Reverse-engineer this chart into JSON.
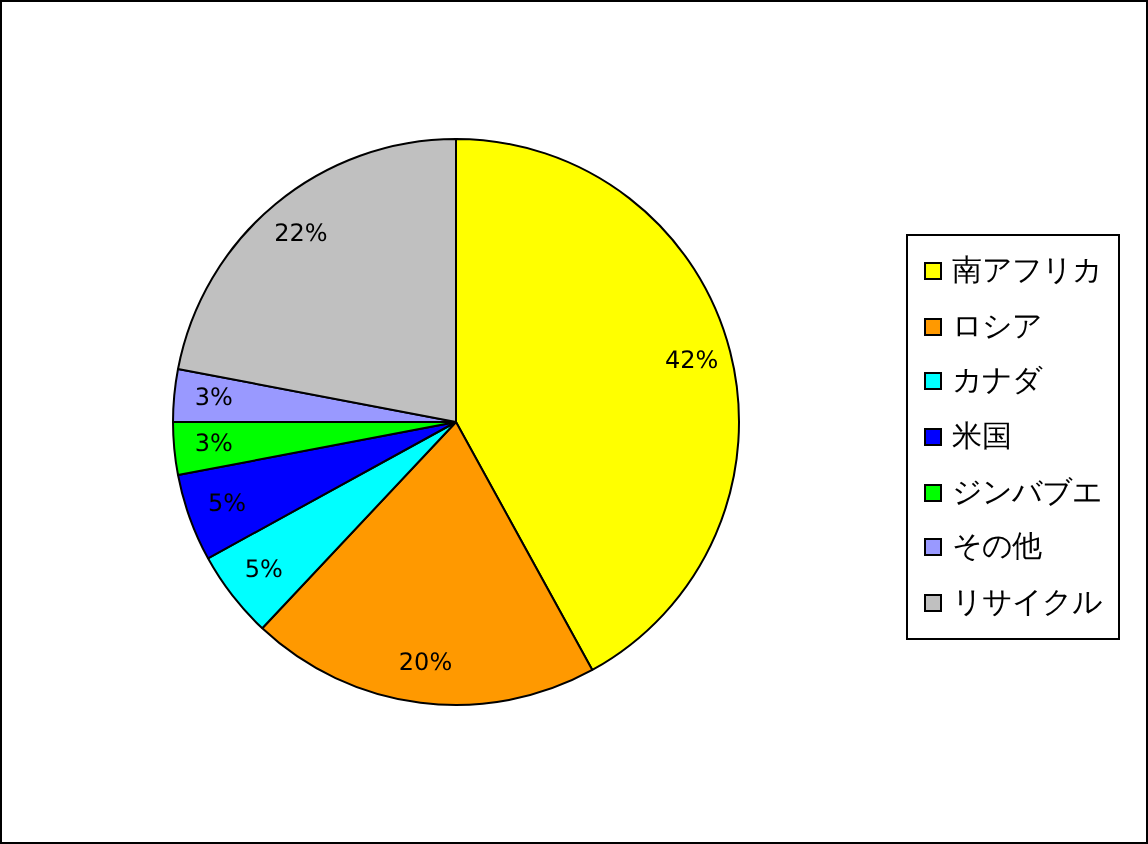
{
  "chart_data": {
    "type": "pie",
    "categories": [
      "南アフリカ",
      "ロシア",
      "カナダ",
      "米国",
      "ジンバブエ",
      "その他",
      "リサイクル"
    ],
    "values": [
      42,
      20,
      5,
      5,
      3,
      3,
      22
    ],
    "colors": [
      "#ffff00",
      "#ff9900",
      "#00ffff",
      "#0000ff",
      "#00ff00",
      "#9999ff",
      "#c0c0c0"
    ],
    "value_labels": [
      "42%",
      "20%",
      "5%",
      "5%",
      "3%",
      "3%",
      "22%"
    ],
    "legend": "right"
  }
}
